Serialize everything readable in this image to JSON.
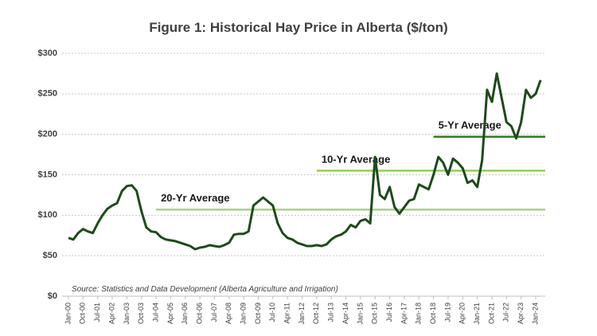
{
  "chart_data": {
    "type": "line",
    "title": "Figure 1: Historical Hay Price in Alberta ($/ton)",
    "source": "Source: Statistics and Data Development (Alberta Agriculture and Irrigation)",
    "categories": [
      "Jan-00",
      null,
      null,
      "Oct-00",
      null,
      null,
      "Jul-01",
      null,
      null,
      "Apr-02",
      null,
      null,
      "Jan-03",
      null,
      null,
      "Oct-03",
      null,
      null,
      "Jul-04",
      null,
      null,
      "Apr-05",
      null,
      null,
      "Jan-06",
      null,
      null,
      "Oct-06",
      null,
      null,
      "Jul-07",
      null,
      null,
      "Apr-08",
      null,
      null,
      "Jan-09",
      null,
      null,
      "Oct-09",
      null,
      null,
      "Jul-10",
      null,
      null,
      "Apr-11",
      null,
      null,
      "Jan-12",
      null,
      null,
      "Oct-12",
      null,
      null,
      "Jul-13",
      null,
      null,
      "Apr-14",
      null,
      null,
      "Jan-15",
      null,
      null,
      "Oct-15",
      null,
      null,
      "Jul-16",
      null,
      null,
      "Apr-17",
      null,
      null,
      "Jan-18",
      null,
      null,
      "Oct-18",
      null,
      null,
      "Jul-19",
      null,
      null,
      "Apr-20",
      null,
      null,
      "Jan-21",
      null,
      null,
      "Oct-21",
      null,
      null,
      "Jul-22",
      null,
      null,
      "Apr-23",
      null,
      null,
      "Jan-24",
      null
    ],
    "series": [
      {
        "color": "#1f4a1c",
        "values": [
          72,
          70,
          78,
          83,
          80,
          78,
          90,
          100,
          108,
          112,
          115,
          130,
          136,
          137,
          130,
          105,
          85,
          80,
          79,
          73,
          70,
          69,
          68,
          66,
          64,
          62,
          58,
          60,
          61,
          63,
          62,
          61,
          63,
          66,
          76,
          77,
          77,
          80,
          112,
          117,
          122,
          117,
          112,
          90,
          78,
          72,
          70,
          66,
          64,
          62,
          62,
          63,
          62,
          64,
          70,
          74,
          76,
          80,
          88,
          85,
          93,
          95,
          90,
          172,
          125,
          120,
          135,
          110,
          102,
          110,
          118,
          120,
          138,
          135,
          132,
          150,
          172,
          165,
          150,
          170,
          165,
          158,
          140,
          143,
          135,
          168,
          255,
          240,
          275,
          245,
          215,
          210,
          195,
          215,
          255,
          245,
          250,
          267
        ]
      }
    ],
    "reference_lines": [
      {
        "name": "20-Yr Average",
        "value": 107,
        "from": "Jul-04",
        "color": "#a9d18e"
      },
      {
        "name": "10-Yr Average",
        "value": 155,
        "from": "Oct-12",
        "color": "#92d050"
      },
      {
        "name": "5-Yr Average",
        "value": 197,
        "from": "Oct-18",
        "color": "#3a7a2a"
      }
    ],
    "ylim": [
      0,
      300
    ],
    "yticks": [
      {
        "value": 0,
        "label": "$0"
      },
      {
        "value": 50,
        "label": "$50"
      },
      {
        "value": 100,
        "label": "$100"
      },
      {
        "value": 150,
        "label": "$150"
      },
      {
        "value": 200,
        "label": "$200"
      },
      {
        "value": 250,
        "label": "$250"
      },
      {
        "value": 300,
        "label": "$300"
      }
    ],
    "grid": true
  }
}
